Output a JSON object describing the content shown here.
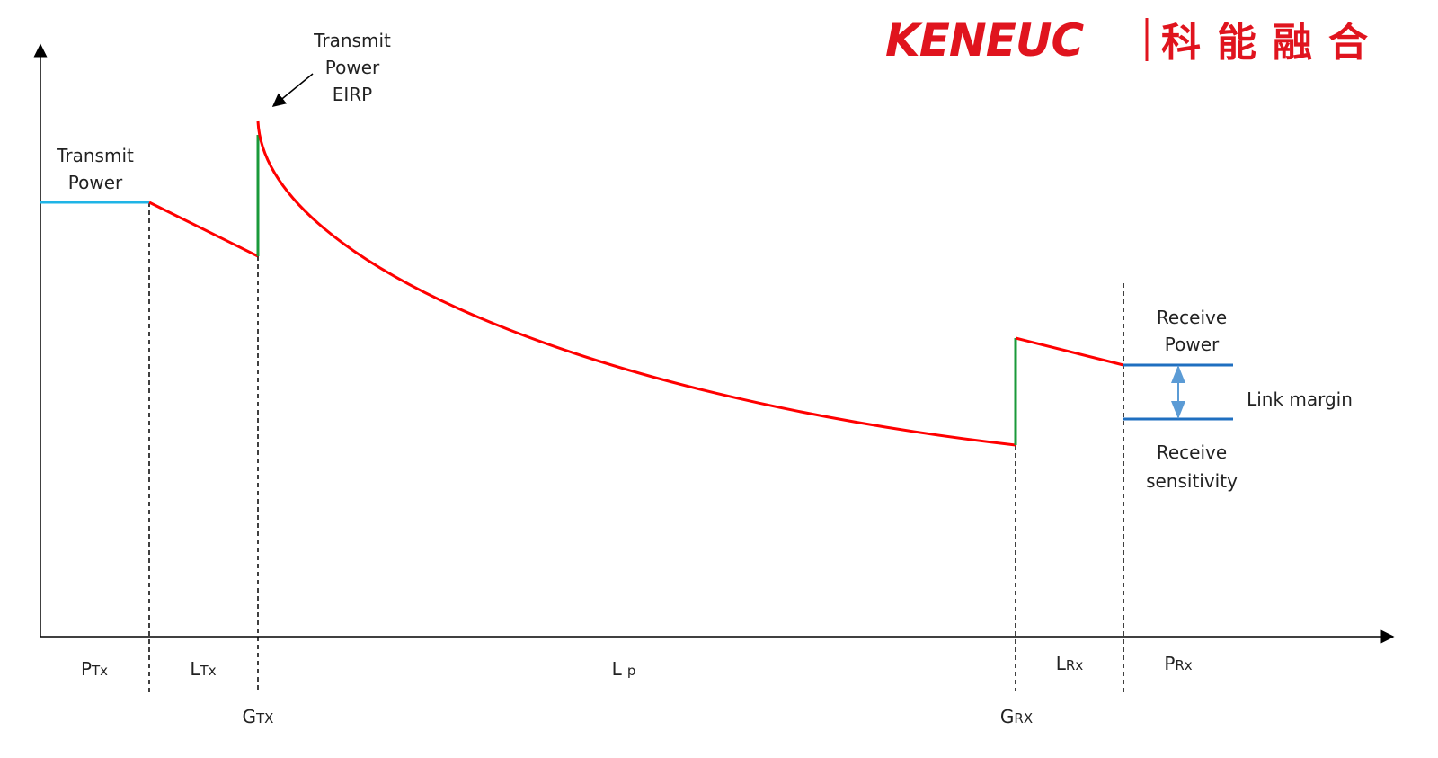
{
  "logo": {
    "brand": "KENEUC",
    "chinese": "科能融合"
  },
  "annotations": {
    "transmit_power": [
      "Transmit",
      "Power"
    ],
    "eirp": [
      "Transmit",
      "Power",
      "EIRP"
    ],
    "receive_power": [
      "Receive",
      "Power"
    ],
    "link_margin": "Link margin",
    "receive_sensitivity": [
      "Receive",
      "sensitivity"
    ]
  },
  "segments": [
    {
      "main": "P",
      "sub": "Tx"
    },
    {
      "main": "L",
      "sub": "Tx"
    },
    {
      "main": "L",
      "sub": "p"
    },
    {
      "main": "L",
      "sub": "Rx"
    },
    {
      "main": "P",
      "sub": "Rx"
    }
  ],
  "gains": [
    {
      "main": "G",
      "sub": "TX"
    },
    {
      "main": "G",
      "sub": "RX"
    }
  ]
}
